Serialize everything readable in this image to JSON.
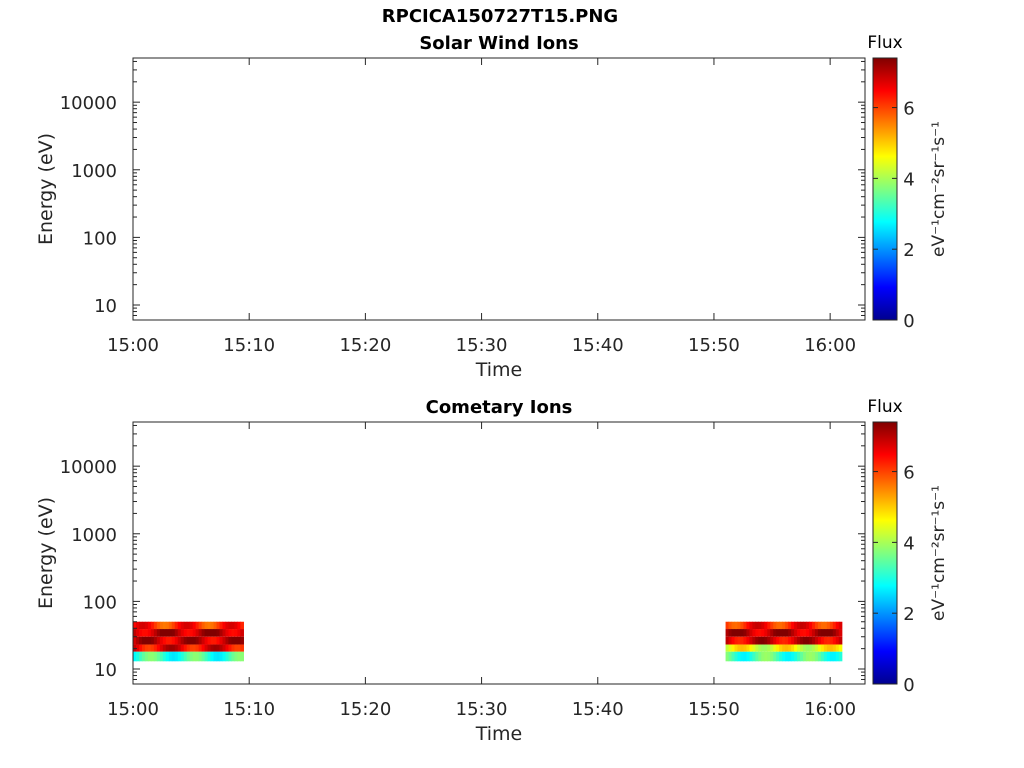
{
  "figure_title": "RPCICA150727T15.PNG",
  "colors": {
    "axis": "#262626"
  },
  "colormap": "jet",
  "chart_data": [
    {
      "type": "heatmap",
      "title": "Solar Wind Ions",
      "xlabel": "Time",
      "ylabel": "Energy (eV)",
      "yscale": "log",
      "ylim": [
        6,
        45000
      ],
      "xlim": [
        "15:00",
        "16:03"
      ],
      "xticks": [
        "15:00",
        "15:10",
        "15:20",
        "15:30",
        "15:40",
        "15:50",
        "16:00"
      ],
      "yticks": [
        "10",
        "100",
        "1000",
        "10000"
      ],
      "colorbar": {
        "label_top": "Flux",
        "units": "eV⁻¹cm⁻²sr⁻¹s⁻¹",
        "range": [
          0,
          7.4
        ],
        "ticks": [
          "0",
          "2",
          "4",
          "6"
        ]
      },
      "data_blocks": []
    },
    {
      "type": "heatmap",
      "title": "Cometary Ions",
      "xlabel": "Time",
      "ylabel": "Energy (eV)",
      "yscale": "log",
      "ylim": [
        6,
        45000
      ],
      "xlim": [
        "15:00",
        "16:03"
      ],
      "xticks": [
        "15:00",
        "15:10",
        "15:20",
        "15:30",
        "15:40",
        "15:50",
        "16:00"
      ],
      "yticks": [
        "10",
        "100",
        "1000",
        "10000"
      ],
      "colorbar": {
        "label_top": "Flux",
        "units": "eV⁻¹cm⁻²sr⁻¹s⁻¹",
        "range": [
          0,
          7.4
        ],
        "ticks": [
          "0",
          "2",
          "4",
          "6"
        ]
      },
      "data_blocks": [
        {
          "start": "15:00",
          "end": "15:09.5",
          "energy_min": 13,
          "energy_max": 50,
          "bands": [
            {
              "energy": [
                39,
                50
              ],
              "level": 6.2
            },
            {
              "energy": [
                30,
                39
              ],
              "level": 7.0
            },
            {
              "energy": [
                23,
                30
              ],
              "level": 6.9
            },
            {
              "energy": [
                18,
                23
              ],
              "level": 6.6
            },
            {
              "energy": [
                13,
                18
              ],
              "level": 3.2
            }
          ]
        },
        {
          "start": "15:51",
          "end": "16:01",
          "energy_min": 13,
          "energy_max": 50,
          "bands": [
            {
              "energy": [
                39,
                50
              ],
              "level": 6.3
            },
            {
              "energy": [
                30,
                39
              ],
              "level": 7.0
            },
            {
              "energy": [
                23,
                30
              ],
              "level": 6.8
            },
            {
              "energy": [
                18,
                23
              ],
              "level": 4.5
            },
            {
              "energy": [
                13,
                18
              ],
              "level": 3.3
            }
          ]
        }
      ]
    }
  ]
}
